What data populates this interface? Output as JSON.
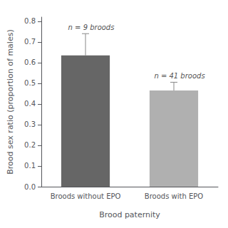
{
  "chart_data": {
    "type": "bar",
    "categories": [
      "Broods without EPO",
      "Broods with EPO"
    ],
    "values": [
      0.635,
      0.465
    ],
    "errors": [
      0.105,
      0.04
    ],
    "colors": [
      "#666666",
      "#b0b0b0"
    ],
    "annotations": [
      "n = 9 broods",
      "n = 41 broods"
    ],
    "ylabel": "Brood sex ratio (proportion of males)",
    "xlabel": "Brood paternity",
    "ylim": [
      0.0,
      0.82
    ],
    "yticks": [
      {
        "value": 0.0,
        "label": "0.0"
      },
      0.1,
      0.2,
      0.3,
      0.4,
      0.5,
      0.6,
      0.7,
      0.8
    ],
    "grid": false
  }
}
